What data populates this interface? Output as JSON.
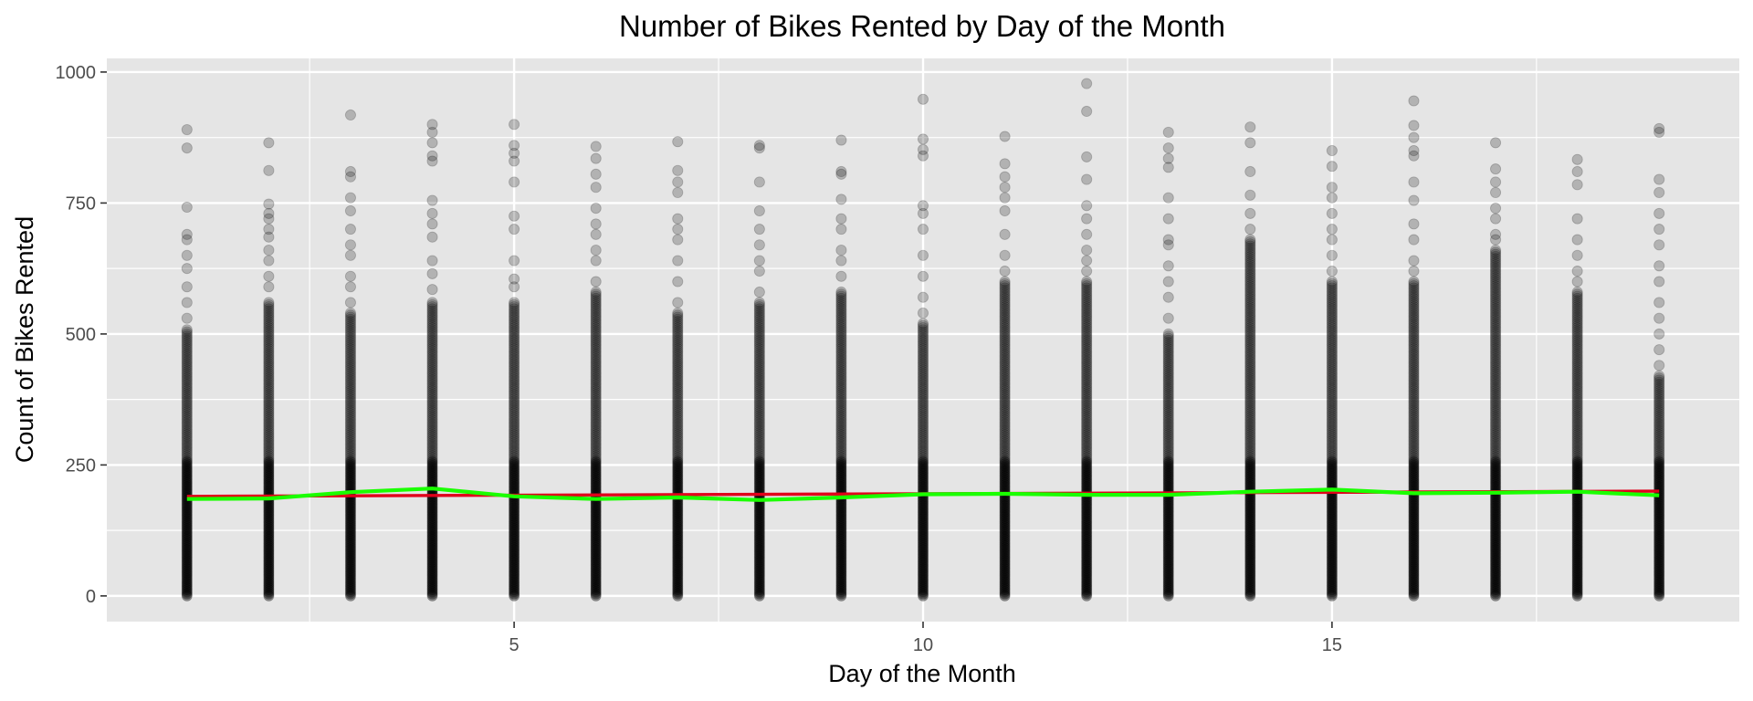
{
  "chart_data": {
    "type": "scatter",
    "title": "Number of Bikes Rented by Day of the Month",
    "xlabel": "Day of the Month",
    "ylabel": "Count of Bikes Rented",
    "xlim": [
      0.02,
      19.98
    ],
    "ylim": [
      -49,
      1026
    ],
    "x_ticks": [
      5,
      10,
      15
    ],
    "y_ticks": [
      0,
      250,
      500,
      750,
      1000
    ],
    "grid": true,
    "legend": "none",
    "colors": {
      "panel": "#e5e5e5",
      "grid": "#ffffff",
      "points": "#000000",
      "trend_linear": "#e0001b",
      "trend_mean": "#1aff00"
    },
    "point_opacity": 0.22,
    "scatter": [
      {
        "day": 1,
        "dense_max": 510,
        "outliers": [
          530,
          560,
          590,
          625,
          650,
          680,
          690,
          742,
          855,
          890
        ]
      },
      {
        "day": 2,
        "dense_max": 560,
        "outliers": [
          590,
          610,
          640,
          660,
          685,
          700,
          720,
          730,
          748,
          812,
          865
        ]
      },
      {
        "day": 3,
        "dense_max": 540,
        "outliers": [
          560,
          590,
          610,
          650,
          670,
          700,
          735,
          760,
          800,
          810,
          918
        ]
      },
      {
        "day": 4,
        "dense_max": 560,
        "outliers": [
          585,
          615,
          640,
          685,
          710,
          730,
          755,
          830,
          840,
          865,
          885,
          900
        ]
      },
      {
        "day": 5,
        "dense_max": 560,
        "outliers": [
          590,
          605,
          640,
          700,
          725,
          790,
          830,
          845,
          860,
          900
        ]
      },
      {
        "day": 6,
        "dense_max": 580,
        "outliers": [
          600,
          640,
          660,
          690,
          710,
          740,
          780,
          805,
          835,
          858
        ]
      },
      {
        "day": 7,
        "dense_max": 540,
        "outliers": [
          560,
          600,
          640,
          680,
          700,
          720,
          770,
          790,
          812,
          867
        ]
      },
      {
        "day": 8,
        "dense_max": 560,
        "outliers": [
          580,
          620,
          640,
          670,
          700,
          735,
          790,
          855,
          860
        ]
      },
      {
        "day": 9,
        "dense_max": 580,
        "outliers": [
          610,
          640,
          660,
          700,
          720,
          757,
          805,
          810,
          870
        ]
      },
      {
        "day": 10,
        "dense_max": 520,
        "outliers": [
          540,
          570,
          610,
          650,
          700,
          730,
          745,
          840,
          852,
          872,
          948
        ]
      },
      {
        "day": 11,
        "dense_max": 600,
        "outliers": [
          620,
          650,
          690,
          735,
          760,
          780,
          800,
          825,
          877
        ]
      },
      {
        "day": 12,
        "dense_max": 600,
        "outliers": [
          620,
          640,
          660,
          690,
          720,
          745,
          795,
          838,
          925,
          978
        ]
      },
      {
        "day": 13,
        "dense_max": 500,
        "outliers": [
          530,
          570,
          600,
          630,
          670,
          680,
          720,
          760,
          818,
          835,
          855,
          885
        ]
      },
      {
        "day": 14,
        "dense_max": 680,
        "outliers": [
          700,
          730,
          765,
          810,
          865,
          895
        ]
      },
      {
        "day": 15,
        "dense_max": 600,
        "outliers": [
          620,
          650,
          680,
          700,
          730,
          760,
          780,
          820,
          850
        ]
      },
      {
        "day": 16,
        "dense_max": 600,
        "outliers": [
          620,
          640,
          680,
          710,
          755,
          790,
          840,
          850,
          875,
          898,
          945
        ]
      },
      {
        "day": 17,
        "dense_max": 660,
        "outliers": [
          680,
          690,
          720,
          740,
          770,
          790,
          815,
          865
        ]
      },
      {
        "day": 18,
        "dense_max": 580,
        "outliers": [
          600,
          620,
          650,
          680,
          720,
          785,
          810,
          833
        ]
      },
      {
        "day": 19,
        "dense_max": 420,
        "outliers": [
          440,
          470,
          500,
          530,
          560,
          600,
          630,
          670,
          700,
          730,
          770,
          795,
          885,
          892
        ]
      }
    ],
    "series": [
      {
        "type": "line",
        "x": [
          1,
          19
        ],
        "values": [
          190,
          200
        ]
      },
      {
        "type": "line",
        "x": [
          1,
          2,
          3,
          4,
          5,
          6,
          7,
          8,
          9,
          10,
          11,
          12,
          13,
          14,
          15,
          16,
          17,
          18,
          19
        ],
        "values": [
          185,
          186,
          198,
          205,
          190,
          185,
          188,
          183,
          188,
          194,
          195,
          193,
          193,
          199,
          203,
          196,
          197,
          199,
          192
        ]
      }
    ]
  }
}
